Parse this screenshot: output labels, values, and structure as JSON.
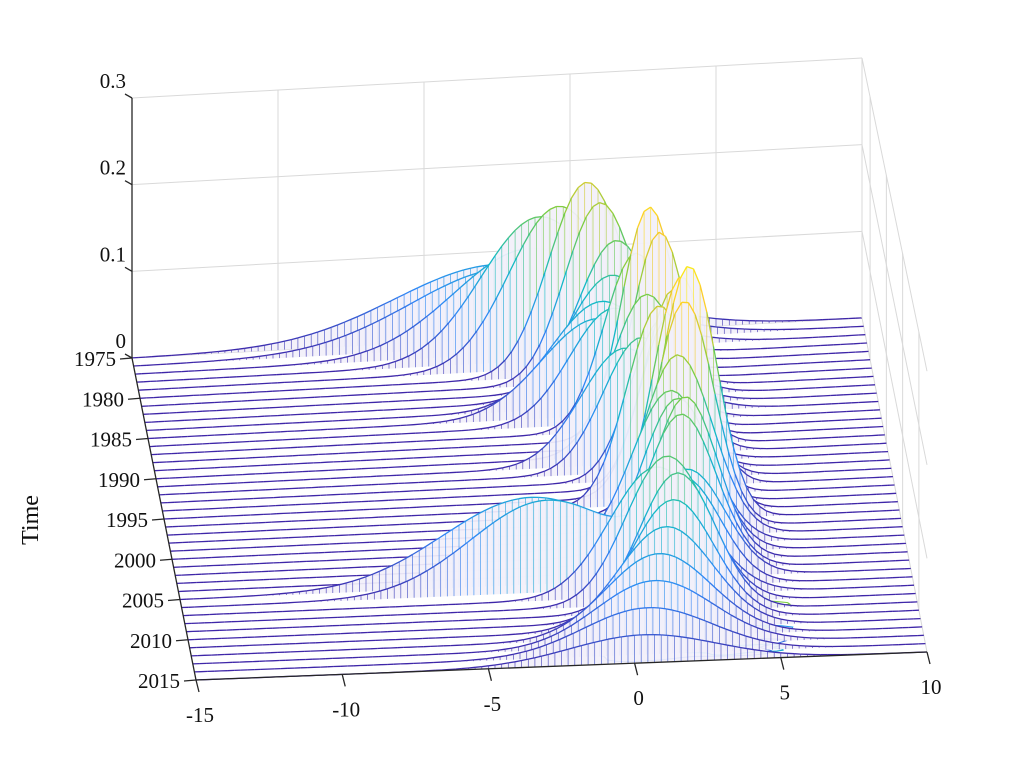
{
  "chart_data": {
    "type": "waterfall-3d",
    "title": "",
    "xlabel": "",
    "ylabel": "Time",
    "zlabel": "",
    "x_ticks": [
      "-15",
      "-10",
      "-5",
      "0",
      "5",
      "10"
    ],
    "xlim": [
      -15,
      10
    ],
    "y_ticks": [
      "1975",
      "1980",
      "1985",
      "1990",
      "1995",
      "2000",
      "2005",
      "2010",
      "2015"
    ],
    "ylim": [
      1975,
      2015
    ],
    "z_ticks": [
      "0",
      "0.1",
      "0.2",
      "0.3"
    ],
    "zlim": [
      0,
      0.3
    ],
    "grid": true,
    "colormap": [
      "#3e26a8",
      "#2e87f7",
      "#12bac5",
      "#79cd42",
      "#fdcc2a",
      "#f9fb0e"
    ],
    "series": [
      {
        "year": 1975,
        "components": [
          {
            "mu": -2.5,
            "sigma": 3.5,
            "amp": 0.085
          }
        ]
      },
      {
        "year": 1976,
        "components": [
          {
            "mu": -2.2,
            "sigma": 3.3,
            "amp": 0.09
          }
        ]
      },
      {
        "year": 1977,
        "components": [
          {
            "mu": -1.5,
            "sigma": 2.6,
            "amp": 0.12
          }
        ]
      },
      {
        "year": 1978,
        "components": [
          {
            "mu": -1.2,
            "sigma": 2.0,
            "amp": 0.165
          }
        ]
      },
      {
        "year": 1979,
        "components": [
          {
            "mu": -0.6,
            "sigma": 1.7,
            "amp": 0.185
          }
        ]
      },
      {
        "year": 1980,
        "components": [
          {
            "mu": 0.3,
            "sigma": 1.3,
            "amp": 0.22
          }
        ]
      },
      {
        "year": 1981,
        "components": [
          {
            "mu": 0.7,
            "sigma": 1.2,
            "amp": 0.205
          }
        ]
      },
      {
        "year": 1982,
        "components": [
          {
            "mu": 1.2,
            "sigma": 1.3,
            "amp": 0.17
          }
        ]
      },
      {
        "year": 1983,
        "components": [
          {
            "mu": 1.0,
            "sigma": 1.5,
            "amp": 0.14
          }
        ]
      },
      {
        "year": 1984,
        "components": [
          {
            "mu": 0.6,
            "sigma": 1.7,
            "amp": 0.12
          }
        ]
      },
      {
        "year": 1985,
        "components": [
          {
            "mu": 0.4,
            "sigma": 1.9,
            "amp": 0.11
          }
        ]
      },
      {
        "year": 1986,
        "components": [
          {
            "mu": 0.9,
            "sigma": 1.5,
            "amp": 0.13
          }
        ]
      },
      {
        "year": 1987,
        "components": [
          {
            "mu": 1.6,
            "sigma": 1.1,
            "amp": 0.2
          }
        ]
      },
      {
        "year": 1988,
        "components": [
          {
            "mu": 2.0,
            "sigma": 0.95,
            "amp": 0.26
          }
        ]
      },
      {
        "year": 1989,
        "components": [
          {
            "mu": 2.3,
            "sigma": 0.95,
            "amp": 0.24
          }
        ]
      },
      {
        "year": 1990,
        "components": [
          {
            "mu": 1.8,
            "sigma": 1.2,
            "amp": 0.18
          }
        ]
      },
      {
        "year": 1991,
        "components": [
          {
            "mu": 1.0,
            "sigma": 1.5,
            "amp": 0.13
          }
        ]
      },
      {
        "year": 1992,
        "components": [
          {
            "mu": 1.5,
            "sigma": 1.3,
            "amp": 0.15
          }
        ]
      },
      {
        "year": 1993,
        "components": [
          {
            "mu": 2.2,
            "sigma": 1.1,
            "amp": 0.18
          }
        ]
      },
      {
        "year": 1994,
        "components": [
          {
            "mu": 2.5,
            "sigma": 1.0,
            "amp": 0.22
          }
        ]
      },
      {
        "year": 1995,
        "components": [
          {
            "mu": 2.3,
            "sigma": 1.0,
            "amp": 0.2
          }
        ]
      },
      {
        "year": 1996,
        "components": [
          {
            "mu": 1.9,
            "sigma": 1.1,
            "amp": 0.22
          }
        ]
      },
      {
        "year": 1997,
        "components": [
          {
            "mu": 2.6,
            "sigma": 0.95,
            "amp": 0.26
          }
        ]
      },
      {
        "year": 1998,
        "components": [
          {
            "mu": 2.8,
            "sigma": 0.95,
            "amp": 0.28
          }
        ]
      },
      {
        "year": 1999,
        "components": [
          {
            "mu": 2.6,
            "sigma": 1.0,
            "amp": 0.25
          }
        ]
      },
      {
        "year": 2000,
        "components": [
          {
            "mu": 2.3,
            "sigma": 1.2,
            "amp": 0.2
          }
        ]
      },
      {
        "year": 2001,
        "components": [
          {
            "mu": 2.0,
            "sigma": 1.3,
            "amp": 0.17
          }
        ]
      },
      {
        "year": 2002,
        "components": [
          {
            "mu": 2.2,
            "sigma": 1.2,
            "amp": 0.17
          }
        ]
      },
      {
        "year": 2003,
        "components": [
          {
            "mu": 2.4,
            "sigma": 1.1,
            "amp": 0.18
          }
        ]
      },
      {
        "year": 2004,
        "components": [
          {
            "mu": 2.2,
            "sigma": 1.2,
            "amp": 0.17
          }
        ]
      },
      {
        "year": 2005,
        "components": [
          {
            "mu": -3.0,
            "sigma": 3.0,
            "amp": 0.095
          },
          {
            "mu": 2.5,
            "sigma": 1.2,
            "amp": 0.1
          }
        ]
      },
      {
        "year": 2006,
        "components": [
          {
            "mu": -2.5,
            "sigma": 2.6,
            "amp": 0.1
          },
          {
            "mu": 2.3,
            "sigma": 1.2,
            "amp": 0.1
          }
        ]
      },
      {
        "year": 2007,
        "components": [
          {
            "mu": 1.2,
            "sigma": 1.6,
            "amp": 0.14
          }
        ]
      },
      {
        "year": 2008,
        "components": [
          {
            "mu": 1.5,
            "sigma": 1.4,
            "amp": 0.16
          }
        ]
      },
      {
        "year": 2009,
        "components": [
          {
            "mu": 1.8,
            "sigma": 1.3,
            "amp": 0.15
          }
        ]
      },
      {
        "year": 2010,
        "components": [
          {
            "mu": 1.6,
            "sigma": 1.4,
            "amp": 0.13
          }
        ]
      },
      {
        "year": 2011,
        "components": [
          {
            "mu": 1.3,
            "sigma": 1.6,
            "amp": 0.11
          }
        ]
      },
      {
        "year": 2012,
        "components": [
          {
            "mu": 1.0,
            "sigma": 1.8,
            "amp": 0.09
          }
        ]
      },
      {
        "year": 2013,
        "components": [
          {
            "mu": 0.8,
            "sigma": 2.0,
            "amp": 0.07
          }
        ]
      },
      {
        "year": 2014,
        "components": [
          {
            "mu": 0.5,
            "sigma": 2.2,
            "amp": 0.05
          }
        ]
      },
      {
        "year": 2015,
        "components": [
          {
            "mu": 0.3,
            "sigma": 2.5,
            "amp": 0.03
          }
        ]
      }
    ]
  }
}
